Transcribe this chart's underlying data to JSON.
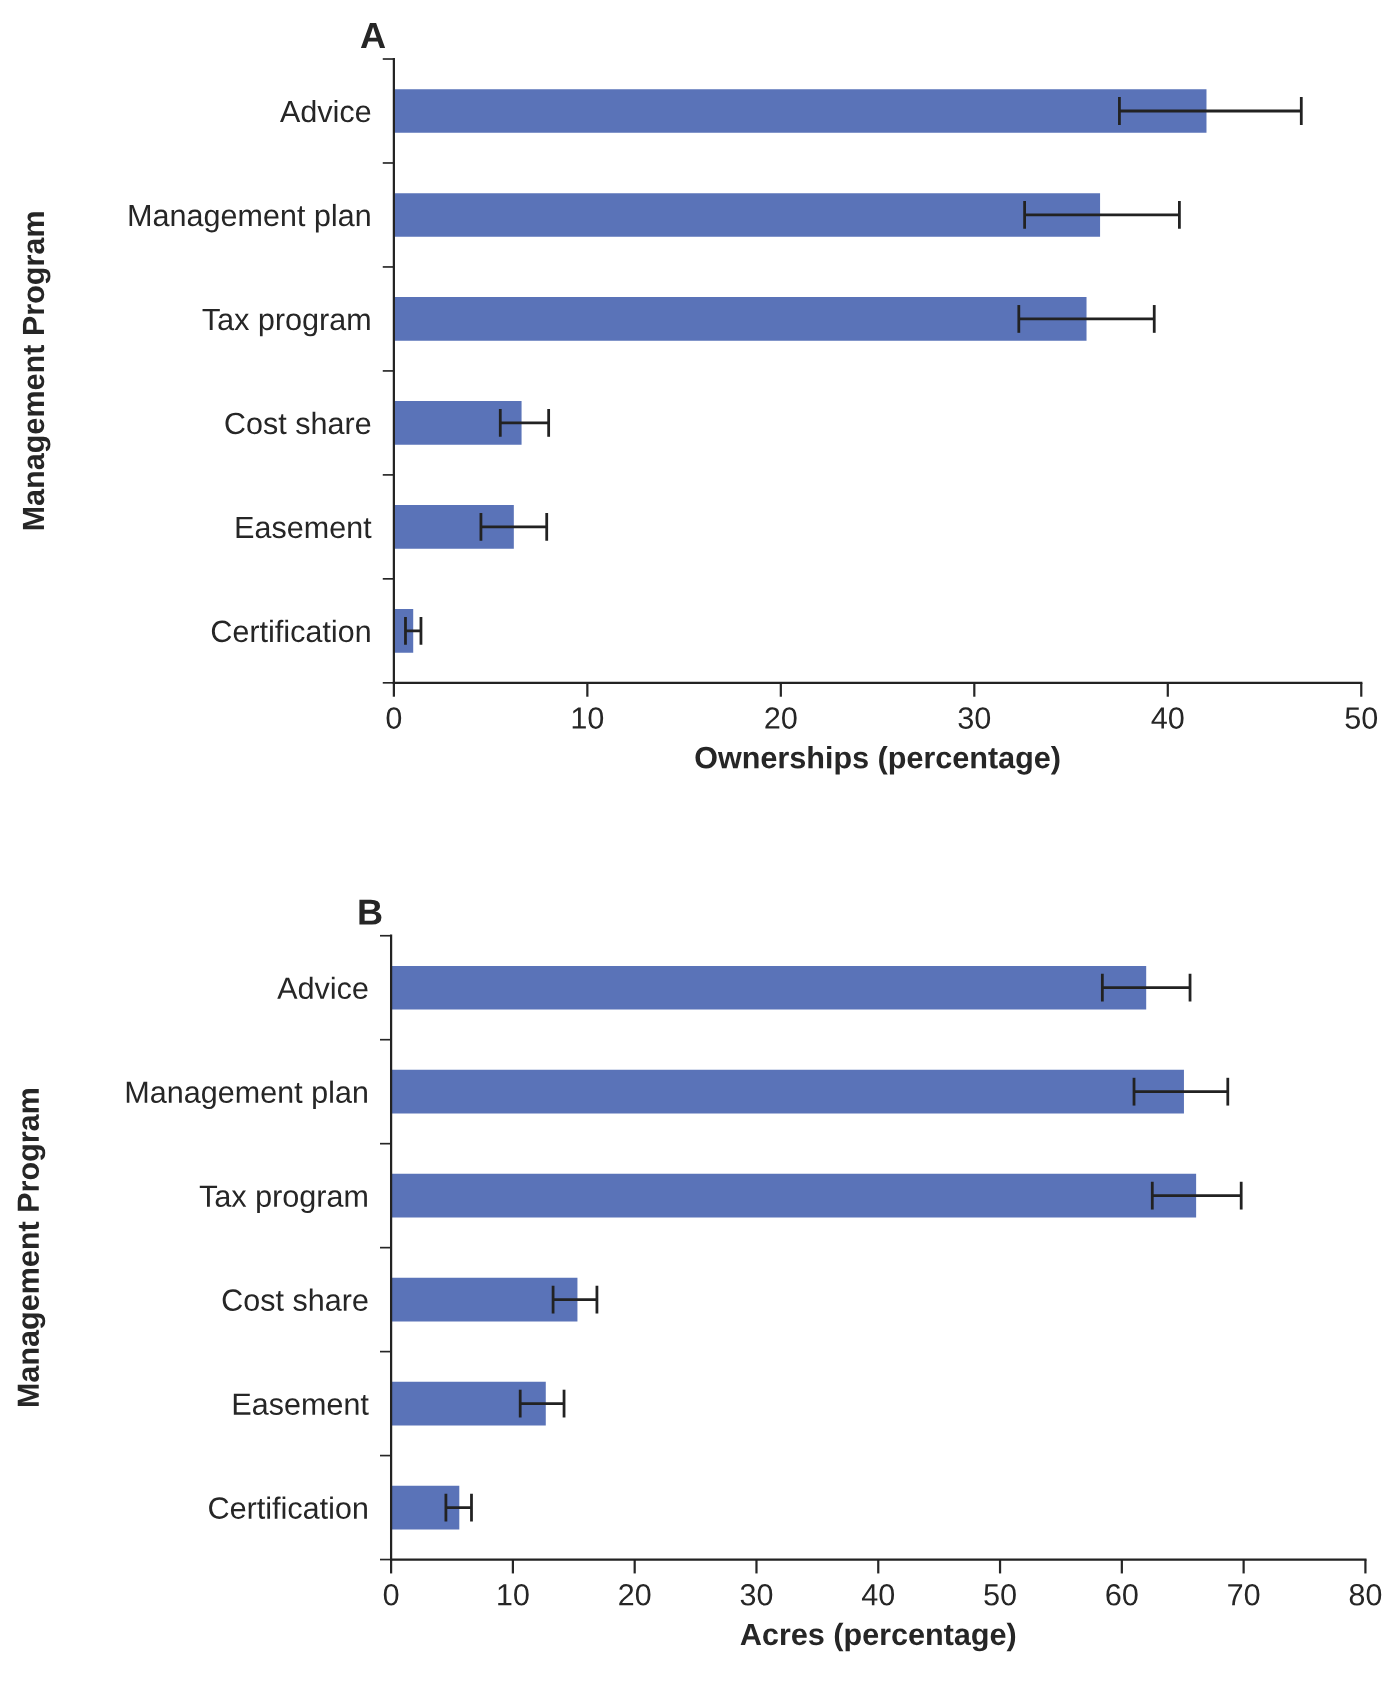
{
  "chart_data": [
    {
      "type": "bar",
      "title": "A",
      "orientation": "horizontal",
      "categories": [
        "Advice",
        "Management plan",
        "Tax program",
        "Cost share",
        "Easement",
        "Certification"
      ],
      "values": [
        42.0,
        36.5,
        35.8,
        6.6,
        6.2,
        1.0
      ],
      "errors": [
        [
          37.5,
          46.9
        ],
        [
          32.6,
          40.6
        ],
        [
          32.3,
          39.3
        ],
        [
          5.5,
          8.0
        ],
        [
          4.5,
          7.9
        ],
        [
          0.6,
          1.4
        ]
      ],
      "color": "#5a73b8",
      "xlim": [
        0,
        50
      ],
      "xticks": [
        0,
        10,
        20,
        30,
        40,
        50
      ],
      "xlabel": "Ownerships (percentage)",
      "ylabel": "Management Program",
      "grid": false
    },
    {
      "type": "bar",
      "title": "B",
      "orientation": "horizontal",
      "categories": [
        "Advice",
        "Management plan",
        "Tax program",
        "Cost share",
        "Easement",
        "Certification"
      ],
      "values": [
        62.0,
        65.1,
        66.1,
        15.3,
        12.7,
        5.6
      ],
      "errors": [
        [
          58.4,
          65.6
        ],
        [
          61.0,
          68.7
        ],
        [
          62.5,
          69.8
        ],
        [
          13.3,
          16.9
        ],
        [
          10.6,
          14.2
        ],
        [
          4.5,
          6.6
        ]
      ],
      "color": "#5a73b8",
      "xlim": [
        0,
        80
      ],
      "xticks": [
        0,
        10,
        20,
        30,
        40,
        50,
        60,
        70,
        80
      ],
      "xlabel": "Acres (percentage)",
      "ylabel": "Management Program",
      "grid": false
    }
  ]
}
